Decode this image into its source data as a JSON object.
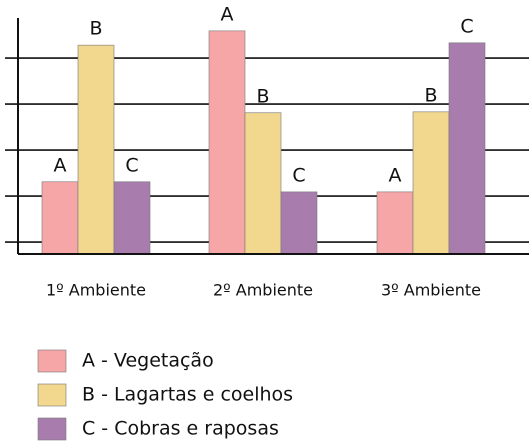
{
  "chart_data": {
    "type": "bar",
    "categories": [
      "1º Ambiente",
      "2º Ambiente",
      "3º Ambiente"
    ],
    "series": [
      {
        "name": "A - Vegetação",
        "bar_label": "A",
        "color": "#f7a6a8",
        "values": [
          1.57,
          4.85,
          1.35
        ]
      },
      {
        "name": "B - Lagartas e coelhos",
        "bar_label": "B",
        "color": "#f2d78f",
        "values": [
          4.54,
          3.07,
          3.09
        ]
      },
      {
        "name": "C - Cobras e raposas",
        "bar_label": "C",
        "color": "#a87dae",
        "values": [
          1.57,
          1.35,
          4.59
        ]
      }
    ],
    "ylim": [
      0,
      5.13
    ],
    "yticks": [
      0.26,
      1.26,
      2.26,
      3.26,
      4.26
    ],
    "grid": true,
    "legend": "bottom"
  }
}
